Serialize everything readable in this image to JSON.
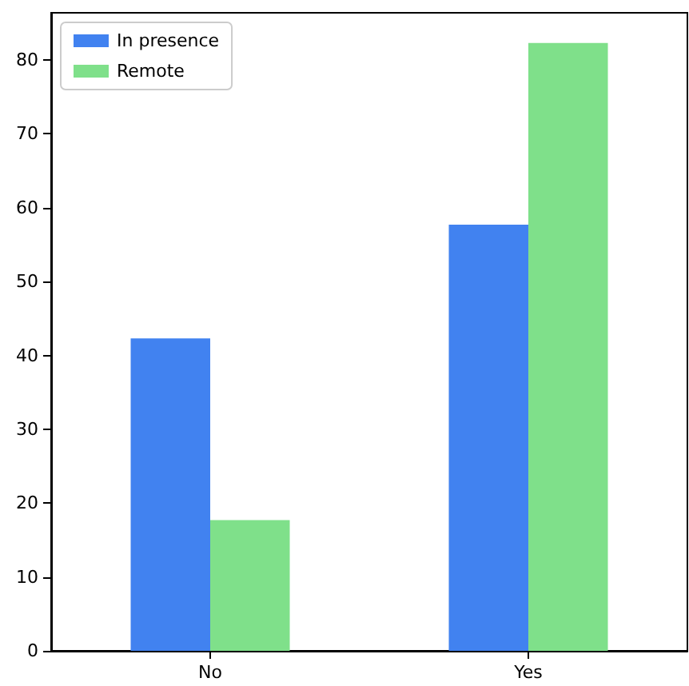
{
  "chart_data": {
    "type": "bar",
    "categories": [
      "No",
      "Yes"
    ],
    "series": [
      {
        "name": "In presence",
        "color": "#4182f0",
        "values": [
          42.3,
          57.7
        ]
      },
      {
        "name": "Remote",
        "color": "#7fe08a",
        "values": [
          17.7,
          82.3
        ]
      }
    ],
    "ylim": [
      0,
      86.4
    ],
    "yticks": [
      0,
      10,
      20,
      30,
      40,
      50,
      60,
      70,
      80
    ],
    "grid": false,
    "legend": "top left"
  }
}
